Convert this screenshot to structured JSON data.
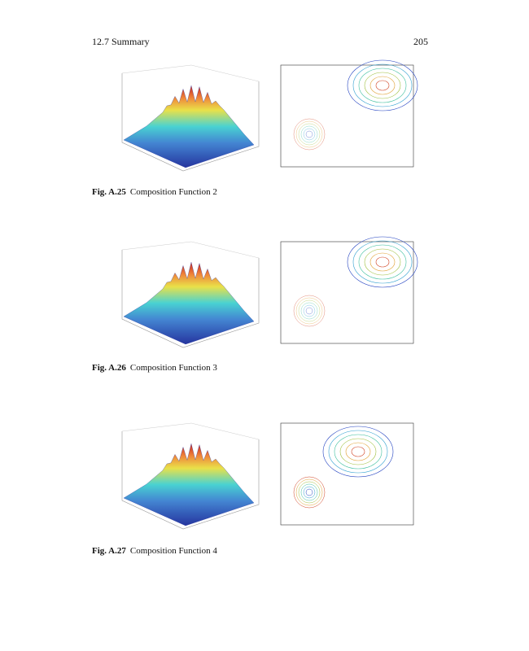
{
  "header": {
    "section": "12.7  Summary",
    "page": "205"
  },
  "figures": [
    {
      "label": "Fig. A.25",
      "caption": "Composition Function 2"
    },
    {
      "label": "Fig. A.26",
      "caption": "Composition Function 3"
    },
    {
      "label": "Fig. A.27",
      "caption": "Composition Function 4"
    }
  ]
}
